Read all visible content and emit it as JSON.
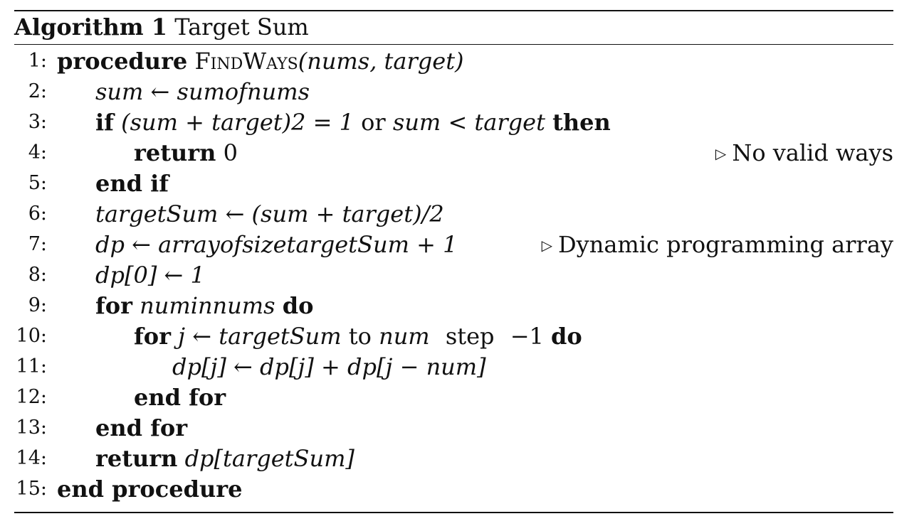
{
  "algorithm": {
    "label": "Algorithm 1",
    "title": "Target Sum"
  },
  "lines": [
    {
      "num": "1:",
      "kw1": "procedure",
      "name": "FindWays",
      "args": "(nums, target)"
    },
    {
      "num": "2:",
      "text": "sum ← sumofnums"
    },
    {
      "num": "3:",
      "kw1": "if",
      "expr": "(sum + target)2 = 1",
      "or": "or",
      "expr2": "sum < target",
      "kw2": "then"
    },
    {
      "num": "4:",
      "kw1": "return",
      "expr": "0",
      "comment": "No valid ways"
    },
    {
      "num": "5:",
      "kw1": "end if"
    },
    {
      "num": "6:",
      "text": "targetSum ← (sum + target)/2"
    },
    {
      "num": "7:",
      "text": "dp ← arrayofsizetargetSum + 1",
      "comment": "Dynamic programming array"
    },
    {
      "num": "8:",
      "text": "dp[0] ← 1"
    },
    {
      "num": "9:",
      "kw1": "for",
      "expr": "numinnums",
      "kw2": "do"
    },
    {
      "num": "10:",
      "kw1": "for",
      "expr": "j ← targetSum",
      "to": "to",
      "expr2": "num",
      "step": "step",
      "val": "−1",
      "kw2": "do"
    },
    {
      "num": "11:",
      "text": "dp[j] ← dp[j] + dp[j − num]"
    },
    {
      "num": "12:",
      "kw1": "end for"
    },
    {
      "num": "13:",
      "kw1": "end for"
    },
    {
      "num": "14:",
      "kw1": "return",
      "expr": "dp[targetSum]"
    },
    {
      "num": "15:",
      "kw1": "end procedure"
    }
  ],
  "icons": {
    "comment_marker": "triangle-right-icon"
  }
}
